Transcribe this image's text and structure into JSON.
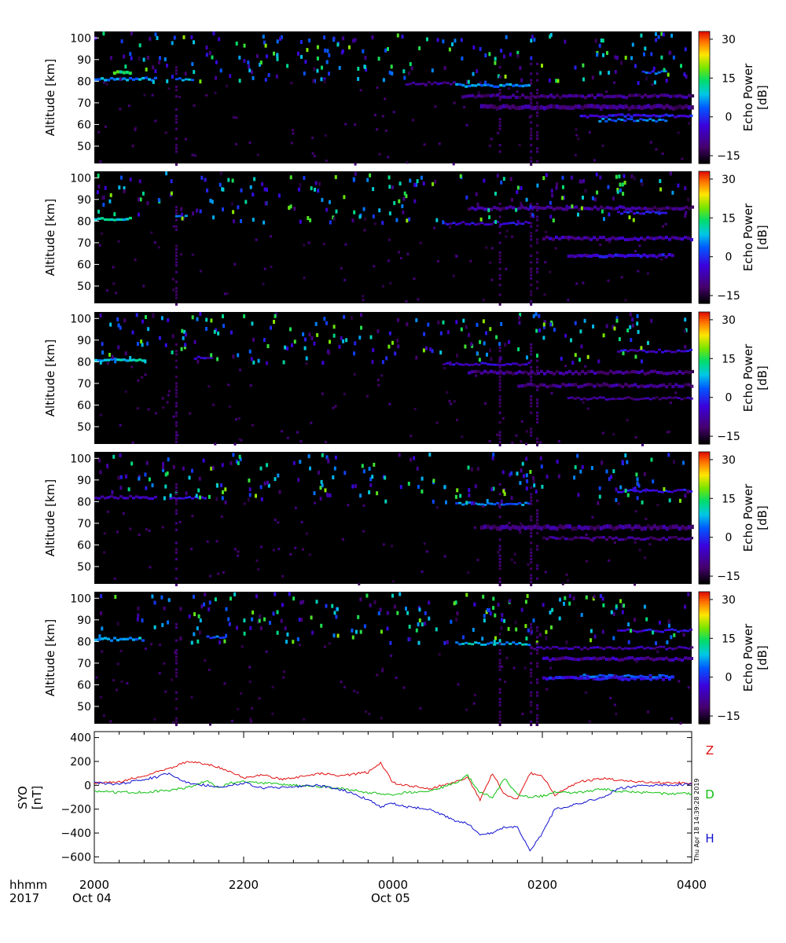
{
  "figure": {
    "timestamp": "Thu Apr 18 14:39:28 2019",
    "bottom_labels": {
      "row1_left": "hhmm",
      "row2_left": "2017",
      "row2_dates": [
        {
          "label": "Oct 04",
          "x": "2000"
        },
        {
          "label": "Oct 05",
          "x": "0000"
        }
      ]
    }
  },
  "chart_data": [
    {
      "type": "heatmap",
      "panel": 1,
      "ylabel": "Altitude [km]",
      "ylim": [
        42,
        103
      ],
      "yticks": [
        50,
        60,
        70,
        80,
        90,
        100
      ],
      "colorbar": {
        "label": [
          "Echo Power",
          "[dB]"
        ],
        "range": [
          -18,
          33
        ],
        "ticks": [
          -15,
          0,
          15,
          30
        ]
      },
      "seed": 11,
      "features": [
        {
          "t0": "2000",
          "t1": "2050",
          "alt": 81,
          "width": 1.2,
          "power": 6
        },
        {
          "t0": "2015",
          "t1": "2030",
          "alt": 84,
          "width": 1.5,
          "power": 14
        },
        {
          "t0": "2105",
          "t1": "2120",
          "alt": 81,
          "width": 1.0,
          "power": 6
        },
        {
          "t0": "0010",
          "t1": "0050",
          "alt": 79,
          "width": 1.0,
          "power": -8
        },
        {
          "t0": "0050",
          "t1": "0150",
          "alt": 78,
          "width": 1.2,
          "power": 6
        },
        {
          "t0": "0055",
          "t1": "0400",
          "alt": 73,
          "width": 1.5,
          "power": -10
        },
        {
          "t0": "0110",
          "t1": "0400",
          "alt": 68,
          "width": 2.0,
          "power": -10
        },
        {
          "t0": "0230",
          "t1": "0400",
          "alt": 64,
          "width": 1.2,
          "power": -3
        },
        {
          "t0": "0245",
          "t1": "0340",
          "alt": 62,
          "width": 1.0,
          "power": 3
        },
        {
          "t0": "0320",
          "t1": "0340",
          "alt": 84,
          "width": 1.0,
          "power": 2
        }
      ]
    },
    {
      "type": "heatmap",
      "panel": 2,
      "ylabel": "Altitude [km]",
      "ylim": [
        42,
        103
      ],
      "yticks": [
        50,
        60,
        70,
        80,
        90,
        100
      ],
      "colorbar": {
        "label": [
          "Echo Power",
          "[dB]"
        ],
        "range": [
          -18,
          33
        ],
        "ticks": [
          -15,
          0,
          15,
          30
        ]
      },
      "seed": 23,
      "features": [
        {
          "t0": "2000",
          "t1": "2030",
          "alt": 81,
          "width": 1.2,
          "power": 10
        },
        {
          "t0": "2105",
          "t1": "2115",
          "alt": 82,
          "width": 1.0,
          "power": 6
        },
        {
          "t0": "0040",
          "t1": "0150",
          "alt": 79,
          "width": 1.0,
          "power": -5
        },
        {
          "t0": "0100",
          "t1": "0400",
          "alt": 86,
          "width": 1.5,
          "power": -10
        },
        {
          "t0": "0200",
          "t1": "0400",
          "alt": 72,
          "width": 1.5,
          "power": -8
        },
        {
          "t0": "0220",
          "t1": "0345",
          "alt": 64,
          "width": 1.5,
          "power": -4
        },
        {
          "t0": "0300",
          "t1": "0340",
          "alt": 84,
          "width": 1.0,
          "power": -2
        }
      ]
    },
    {
      "type": "heatmap",
      "panel": 3,
      "ylabel": "Altitude [km]",
      "ylim": [
        42,
        103
      ],
      "yticks": [
        50,
        60,
        70,
        80,
        90,
        100
      ],
      "colorbar": {
        "label": [
          "Echo Power",
          "[dB]"
        ],
        "range": [
          -18,
          33
        ],
        "ticks": [
          -15,
          0,
          15,
          30
        ]
      },
      "seed": 37,
      "features": [
        {
          "t0": "2000",
          "t1": "2040",
          "alt": 81,
          "width": 1.2,
          "power": 8
        },
        {
          "t0": "2120",
          "t1": "2135",
          "alt": 82,
          "width": 1.0,
          "power": -6
        },
        {
          "t0": "0040",
          "t1": "0150",
          "alt": 79,
          "width": 1.0,
          "power": -6
        },
        {
          "t0": "0100",
          "t1": "0400",
          "alt": 75,
          "width": 1.5,
          "power": -10
        },
        {
          "t0": "0140",
          "t1": "0400",
          "alt": 69,
          "width": 1.5,
          "power": -10
        },
        {
          "t0": "0220",
          "t1": "0400",
          "alt": 63,
          "width": 1.0,
          "power": -10
        },
        {
          "t0": "0300",
          "t1": "0400",
          "alt": 85,
          "width": 1.0,
          "power": -5
        }
      ]
    },
    {
      "type": "heatmap",
      "panel": 4,
      "ylabel": "Altitude [km]",
      "ylim": [
        42,
        103
      ],
      "yticks": [
        50,
        60,
        70,
        80,
        90,
        100
      ],
      "colorbar": {
        "label": [
          "Echo Power",
          "[dB]"
        ],
        "range": [
          -18,
          33
        ],
        "ticks": [
          -15,
          0,
          15,
          30
        ]
      },
      "seed": 53,
      "features": [
        {
          "t0": "2000",
          "t1": "2050",
          "alt": 82,
          "width": 1.2,
          "power": -6
        },
        {
          "t0": "2100",
          "t1": "2130",
          "alt": 82,
          "width": 1.0,
          "power": -4
        },
        {
          "t0": "0050",
          "t1": "0150",
          "alt": 79,
          "width": 1.0,
          "power": 4
        },
        {
          "t0": "0110",
          "t1": "0400",
          "alt": 68,
          "width": 2.0,
          "power": -10
        },
        {
          "t0": "0200",
          "t1": "0400",
          "alt": 63,
          "width": 1.2,
          "power": -10
        },
        {
          "t0": "0300",
          "t1": "0400",
          "alt": 85,
          "width": 1.0,
          "power": -4
        }
      ]
    },
    {
      "type": "heatmap",
      "panel": 5,
      "ylabel": "Altitude [km]",
      "ylim": [
        42,
        103
      ],
      "yticks": [
        50,
        60,
        70,
        80,
        90,
        100
      ],
      "colorbar": {
        "label": [
          "Echo Power",
          "[dB]"
        ],
        "range": [
          -18,
          33
        ],
        "ticks": [
          -15,
          0,
          15,
          30
        ]
      },
      "seed": 71,
      "features": [
        {
          "t0": "2000",
          "t1": "2040",
          "alt": 81,
          "width": 1.2,
          "power": 6
        },
        {
          "t0": "2130",
          "t1": "2145",
          "alt": 82,
          "width": 1.0,
          "power": 2
        },
        {
          "t0": "0050",
          "t1": "0150",
          "alt": 79,
          "width": 1.0,
          "power": 8
        },
        {
          "t0": "0150",
          "t1": "0400",
          "alt": 77,
          "width": 1.0,
          "power": -8
        },
        {
          "t0": "0200",
          "t1": "0400",
          "alt": 72,
          "width": 1.5,
          "power": -8
        },
        {
          "t0": "0200",
          "t1": "0345",
          "alt": 63,
          "width": 1.5,
          "power": -3
        },
        {
          "t0": "0230",
          "t1": "0345",
          "alt": 64,
          "width": 1.0,
          "power": 2
        },
        {
          "t0": "0300",
          "t1": "0400",
          "alt": 85,
          "width": 1.0,
          "power": -4
        }
      ]
    },
    {
      "type": "line",
      "ylabel": [
        "SYO",
        "[nT]"
      ],
      "ylim": [
        -650,
        450
      ],
      "yticks": [
        -600,
        -400,
        -200,
        0,
        200,
        400
      ],
      "xticks": [
        "2000",
        "2200",
        "0000",
        "0200",
        "0400"
      ],
      "x": [
        "2000",
        "2020",
        "2035",
        "2050",
        "2100",
        "2115",
        "2130",
        "2140",
        "2150",
        "2200",
        "2215",
        "2230",
        "2245",
        "2300",
        "2320",
        "2340",
        "2350",
        "0000",
        "0010",
        "0030",
        "0050",
        "0100",
        "0110",
        "0120",
        "0130",
        "0140",
        "0150",
        "0200",
        "0210",
        "0230",
        "0250",
        "0300",
        "0320",
        "0340",
        "0400"
      ],
      "series": [
        {
          "name": "Z",
          "color": "#e01010",
          "values": [
            20,
            30,
            70,
            110,
            140,
            200,
            180,
            150,
            110,
            60,
            90,
            50,
            70,
            100,
            80,
            110,
            190,
            20,
            0,
            -30,
            30,
            60,
            -120,
            100,
            -80,
            -120,
            100,
            80,
            -80,
            30,
            60,
            40,
            30,
            20,
            20
          ]
        },
        {
          "name": "D",
          "color": "#10c010",
          "values": [
            -50,
            -60,
            -60,
            -50,
            -40,
            -20,
            40,
            -20,
            20,
            30,
            20,
            10,
            0,
            -10,
            -30,
            -60,
            -70,
            -90,
            -60,
            -50,
            20,
            80,
            -60,
            -100,
            60,
            -80,
            -100,
            -90,
            -60,
            -60,
            -30,
            -50,
            -60,
            -70,
            -70
          ]
        },
        {
          "name": "H",
          "color": "#1010d0",
          "values": [
            20,
            10,
            40,
            70,
            100,
            20,
            0,
            -10,
            0,
            20,
            -20,
            -20,
            -10,
            0,
            -40,
            -120,
            -180,
            -150,
            -180,
            -200,
            -300,
            -320,
            -420,
            -400,
            -350,
            -350,
            -550,
            -400,
            -200,
            -150,
            -100,
            -30,
            0,
            0,
            10
          ]
        }
      ]
    }
  ]
}
